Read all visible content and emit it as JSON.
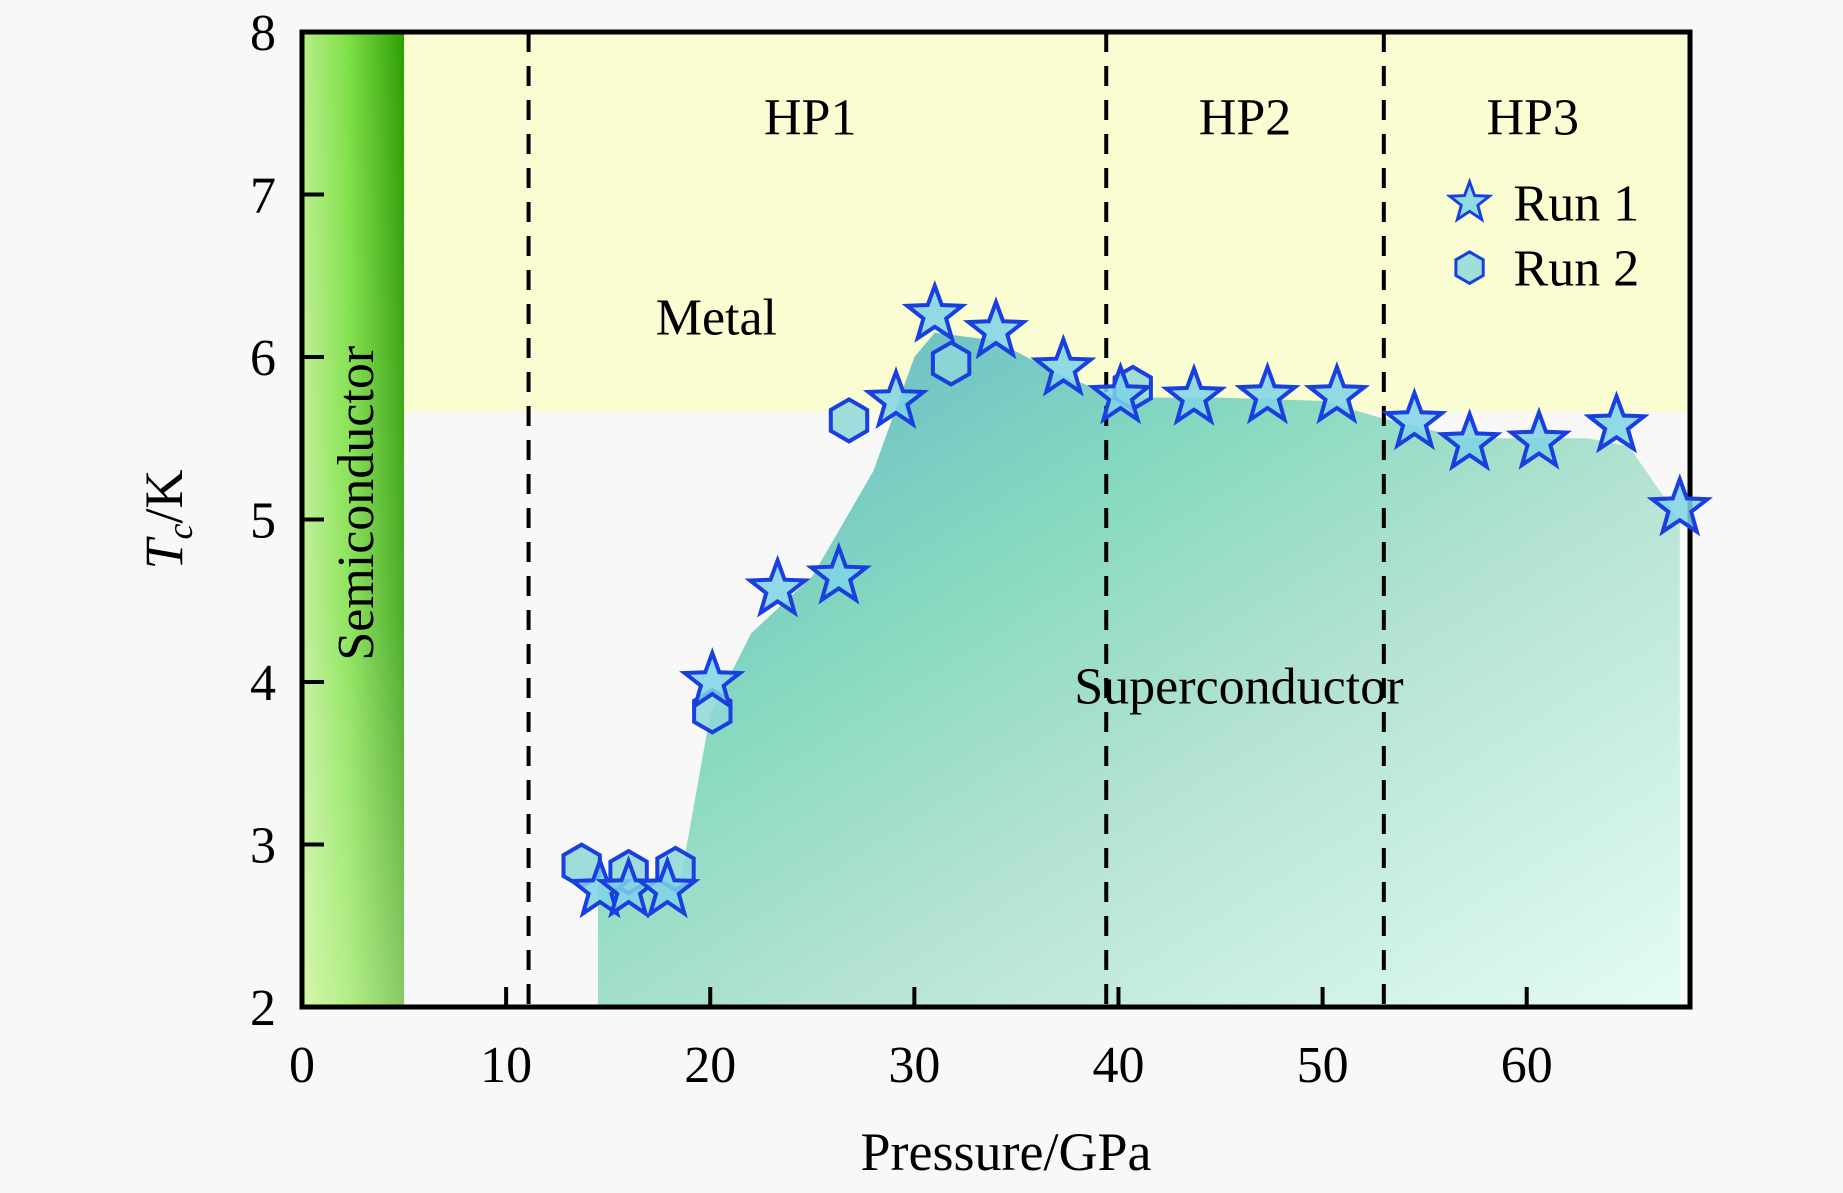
{
  "chart_data": {
    "type": "scatter",
    "title": "",
    "xlabel": "Pressure/GPa",
    "ylabel_main": "T",
    "ylabel_sub": "c",
    "ylabel_unit": "/K",
    "xlim": [
      0,
      68
    ],
    "ylim": [
      2,
      8
    ],
    "x_ticks": [
      0,
      10,
      20,
      30,
      40,
      50,
      60
    ],
    "x_tick_labels": [
      "0",
      "10",
      "20",
      "30",
      "40",
      "50",
      "60"
    ],
    "y_ticks": [
      2,
      3,
      4,
      5,
      6,
      7,
      8
    ],
    "y_tick_labels": [
      "2",
      "3",
      "4",
      "5",
      "6",
      "7",
      "8"
    ],
    "grid": false,
    "legend_position": "top-right",
    "phase_boundaries": [
      11.1,
      39.4,
      53.0
    ],
    "regions": {
      "semiconductor": {
        "label": "Semiconductor",
        "x_range": [
          0,
          5
        ],
        "color": "#4cc41a"
      },
      "metal": {
        "label": "Metal",
        "color": "#fafcd2"
      },
      "superconductor": {
        "label": "Superconductor",
        "color": "#86d9c0"
      },
      "hp1": {
        "label": "HP1"
      },
      "hp2": {
        "label": "HP2"
      },
      "hp3": {
        "label": "HP3"
      }
    },
    "metal_lower_bound_T": 5.66,
    "superconducting_dome": {
      "x": [
        14.5,
        14.5,
        16,
        18.5,
        20,
        22,
        25,
        28,
        30,
        31,
        34,
        37,
        40,
        45,
        50,
        53,
        57,
        60,
        63,
        65,
        67.5,
        67.5
      ],
      "y": [
        2,
        2.75,
        2.75,
        2.75,
        3.8,
        4.3,
        4.65,
        5.3,
        6.0,
        6.15,
        6.1,
        5.9,
        5.75,
        5.75,
        5.73,
        5.62,
        5.5,
        5.5,
        5.5,
        5.45,
        5.0,
        2
      ]
    },
    "series": [
      {
        "name": "Run 1",
        "marker": "star",
        "color": "#1a3fe0",
        "fill": "#7fd3e6",
        "x": [
          14.6,
          16.0,
          17.9,
          20.1,
          23.3,
          26.3,
          29.1,
          31.0,
          34.0,
          37.3,
          40.1,
          43.7,
          47.3,
          50.7,
          54.5,
          57.2,
          60.6,
          64.4,
          67.5
        ],
        "y": [
          2.72,
          2.72,
          2.72,
          4.0,
          4.57,
          4.65,
          5.73,
          6.26,
          6.16,
          5.93,
          5.76,
          5.75,
          5.76,
          5.76,
          5.6,
          5.47,
          5.48,
          5.58,
          5.07
        ]
      },
      {
        "name": "Run 2",
        "marker": "hexagon",
        "color": "#1a3fe0",
        "fill": "#8fd8d8",
        "x": [
          13.7,
          16.0,
          18.3,
          20.1,
          26.8,
          31.8,
          40.7
        ],
        "y": [
          2.87,
          2.83,
          2.85,
          3.82,
          5.61,
          5.96,
          5.81
        ]
      }
    ]
  }
}
